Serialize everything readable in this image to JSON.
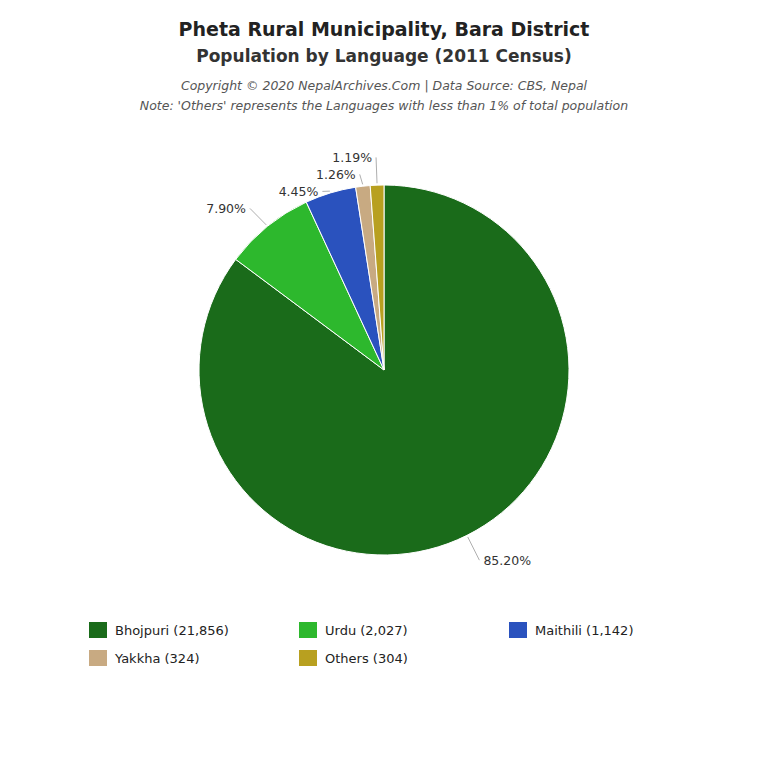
{
  "chart_data": {
    "type": "pie",
    "title": "Pheta Rural Municipality, Bara District",
    "subtitle": "Population by Language (2011 Census)",
    "annotations": [
      "Copyright © 2020 NepalArchives.Com | Data Source: CBS, Nepal",
      "Note: 'Others' represents the Languages with less than 1% of total population"
    ],
    "categories": [
      "Bhojpuri (21,856)",
      "Urdu (2,027)",
      "Maithili (1,142)",
      "Yakkha (324)",
      "Others (304)"
    ],
    "values": [
      85.2,
      7.9,
      4.45,
      1.26,
      1.19
    ],
    "value_labels": [
      "85.20%",
      "7.90%",
      "4.45%",
      "1.26%",
      "1.19%"
    ],
    "colors": [
      "#1a6b1a",
      "#2db82d",
      "#2a52be",
      "#c8aa82",
      "#b8a020"
    ],
    "data_labels": true,
    "legend": "bottom"
  }
}
